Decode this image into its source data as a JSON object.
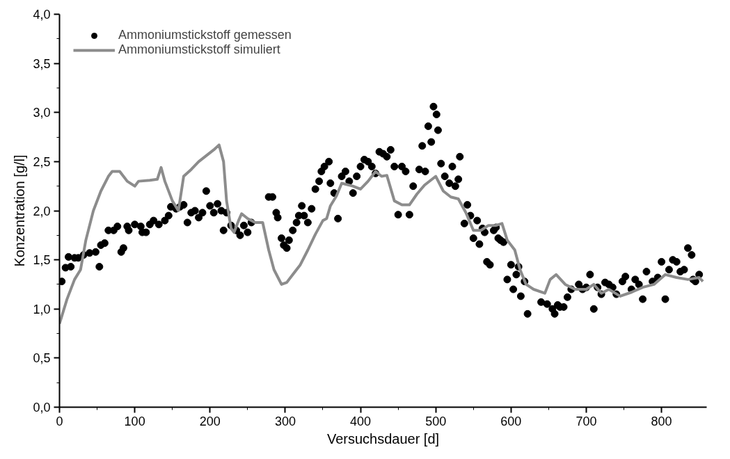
{
  "chart_data": {
    "type": "scatter",
    "xlabel": "Versuchsdauer [d]",
    "ylabel": "Konzentration [g/l]",
    "xlim": [
      0,
      860
    ],
    "xticks": [
      0,
      100,
      200,
      300,
      400,
      500,
      600,
      700,
      800
    ],
    "ylim": [
      0,
      4.0
    ],
    "yticks": [
      {
        "value": 0,
        "label": "0,0"
      },
      {
        "value": 0.5,
        "label": "0,5"
      },
      {
        "value": 1.0,
        "label": "1,0"
      },
      {
        "value": 1.5,
        "label": "1,5"
      },
      {
        "value": 2.0,
        "label": "2,0"
      },
      {
        "value": 2.5,
        "label": "2,5"
      },
      {
        "value": 3.0,
        "label": "3,0"
      },
      {
        "value": 3.5,
        "label": "3,5"
      },
      {
        "value": 4.0,
        "label": "4,0"
      }
    ],
    "grid": false,
    "legend": "top left",
    "series": [
      {
        "name": "Ammoniumstickstoff gemessen",
        "marker": "circle",
        "color": "#000000",
        "x": [
          3,
          8,
          12,
          15,
          20,
          25,
          32,
          40,
          48,
          53,
          55,
          60,
          65,
          72,
          77,
          82,
          85,
          90,
          92,
          100,
          108,
          110,
          115,
          120,
          125,
          132,
          140,
          145,
          148,
          155,
          160,
          165,
          170,
          175,
          180,
          185,
          190,
          195,
          200,
          205,
          210,
          215,
          218,
          222,
          228,
          235,
          240,
          245,
          250,
          255,
          278,
          283,
          288,
          290,
          295,
          298,
          302,
          305,
          310,
          315,
          318,
          322,
          325,
          330,
          335,
          340,
          345,
          348,
          352,
          358,
          360,
          365,
          370,
          375,
          380,
          385,
          390,
          395,
          400,
          405,
          410,
          415,
          420,
          425,
          430,
          435,
          440,
          445,
          450,
          455,
          460,
          465,
          470,
          478,
          482,
          486,
          490,
          494,
          497,
          501,
          503,
          507,
          512,
          518,
          522,
          526,
          530,
          532,
          538,
          542,
          546,
          550,
          555,
          558,
          562,
          565,
          568,
          572,
          577,
          580,
          583,
          586,
          590,
          595,
          600,
          603,
          607,
          610,
          613,
          618,
          622,
          640,
          648,
          655,
          658,
          662,
          665,
          670,
          675,
          680,
          690,
          695,
          700,
          705,
          710,
          715,
          720,
          725,
          730,
          735,
          740,
          748,
          752,
          760,
          765,
          770,
          775,
          780,
          788,
          795,
          800,
          805,
          810,
          815,
          820,
          825,
          830,
          835,
          840,
          842,
          845,
          850
        ],
        "values": [
          1.28,
          1.42,
          1.53,
          1.43,
          1.52,
          1.52,
          1.55,
          1.57,
          1.58,
          1.43,
          1.65,
          1.67,
          1.8,
          1.8,
          1.84,
          1.58,
          1.62,
          1.84,
          1.8,
          1.86,
          1.84,
          1.78,
          1.78,
          1.86,
          1.9,
          1.86,
          1.9,
          1.95,
          2.04,
          2.02,
          2.04,
          2.06,
          1.88,
          1.98,
          2.0,
          1.93,
          1.98,
          2.2,
          2.05,
          1.98,
          2.07,
          2.0,
          1.8,
          1.98,
          1.85,
          1.8,
          1.75,
          1.85,
          1.78,
          1.88,
          2.14,
          2.14,
          1.98,
          1.93,
          1.72,
          1.65,
          1.62,
          1.7,
          1.8,
          1.88,
          1.95,
          2.05,
          1.95,
          1.88,
          2.02,
          2.22,
          2.3,
          2.4,
          2.45,
          2.5,
          2.28,
          2.18,
          1.92,
          2.35,
          2.4,
          2.3,
          2.18,
          2.35,
          2.45,
          2.52,
          2.5,
          2.45,
          2.38,
          2.6,
          2.58,
          2.55,
          2.62,
          2.45,
          1.96,
          2.45,
          2.4,
          1.96,
          2.25,
          2.42,
          2.66,
          2.4,
          2.86,
          2.7,
          3.06,
          2.98,
          2.82,
          2.48,
          2.35,
          2.28,
          2.45,
          2.25,
          2.32,
          2.55,
          1.87,
          2.06,
          1.95,
          1.72,
          1.9,
          1.66,
          1.82,
          1.78,
          1.48,
          1.45,
          1.8,
          1.83,
          1.72,
          1.7,
          1.68,
          1.3,
          1.45,
          1.2,
          1.35,
          1.43,
          1.13,
          1.28,
          0.95,
          1.07,
          1.05,
          1.0,
          0.95,
          1.04,
          1.02,
          1.02,
          1.12,
          1.2,
          1.25,
          1.2,
          1.22,
          1.35,
          1.0,
          1.22,
          1.15,
          1.27,
          1.25,
          1.22,
          1.15,
          1.28,
          1.33,
          1.2,
          1.3,
          1.25,
          1.1,
          1.38,
          1.28,
          1.32,
          1.48,
          1.1,
          1.4,
          1.5,
          1.48,
          1.38,
          1.4,
          1.62,
          1.55,
          1.3,
          1.28,
          1.35
        ]
      },
      {
        "name": "Ammoniumstickstoff simuliert",
        "type": "line",
        "line_style": "solid",
        "color": "#8c8c8c",
        "x": [
          0,
          10,
          20,
          28,
          35,
          45,
          55,
          65,
          70,
          80,
          90,
          100,
          105,
          120,
          130,
          135,
          140,
          150,
          158,
          165,
          175,
          185,
          195,
          205,
          212,
          218,
          222,
          228,
          232,
          238,
          242,
          250,
          260,
          270,
          278,
          285,
          295,
          302,
          310,
          320,
          330,
          340,
          350,
          355,
          360,
          368,
          375,
          390,
          400,
          410,
          420,
          428,
          435,
          445,
          455,
          465,
          475,
          485,
          495,
          500,
          510,
          520,
          530,
          540,
          550,
          560,
          570,
          580,
          588,
          595,
          605,
          612,
          620,
          630,
          645,
          652,
          660,
          672,
          685,
          700,
          710,
          720,
          730,
          745,
          760,
          775,
          790,
          805,
          820,
          835,
          850,
          855
        ],
        "values": [
          0.85,
          1.1,
          1.3,
          1.4,
          1.7,
          2.0,
          2.2,
          2.35,
          2.4,
          2.4,
          2.3,
          2.25,
          2.3,
          2.31,
          2.32,
          2.44,
          2.3,
          2.1,
          2.0,
          2.35,
          2.42,
          2.5,
          2.56,
          2.62,
          2.67,
          2.5,
          2.1,
          1.82,
          1.78,
          1.9,
          1.97,
          1.92,
          1.88,
          1.88,
          1.6,
          1.4,
          1.25,
          1.27,
          1.35,
          1.45,
          1.6,
          1.76,
          1.9,
          1.92,
          2.05,
          2.15,
          2.28,
          2.25,
          2.22,
          2.3,
          2.4,
          2.35,
          2.36,
          2.1,
          2.06,
          2.06,
          2.17,
          2.26,
          2.32,
          2.35,
          2.2,
          2.14,
          2.12,
          1.98,
          1.8,
          1.8,
          1.85,
          1.85,
          1.87,
          1.7,
          1.6,
          1.4,
          1.25,
          1.2,
          1.16,
          1.3,
          1.35,
          1.25,
          1.2,
          1.2,
          1.25,
          1.16,
          1.2,
          1.13,
          1.17,
          1.22,
          1.25,
          1.35,
          1.32,
          1.3,
          1.32,
          1.28
        ]
      }
    ]
  }
}
